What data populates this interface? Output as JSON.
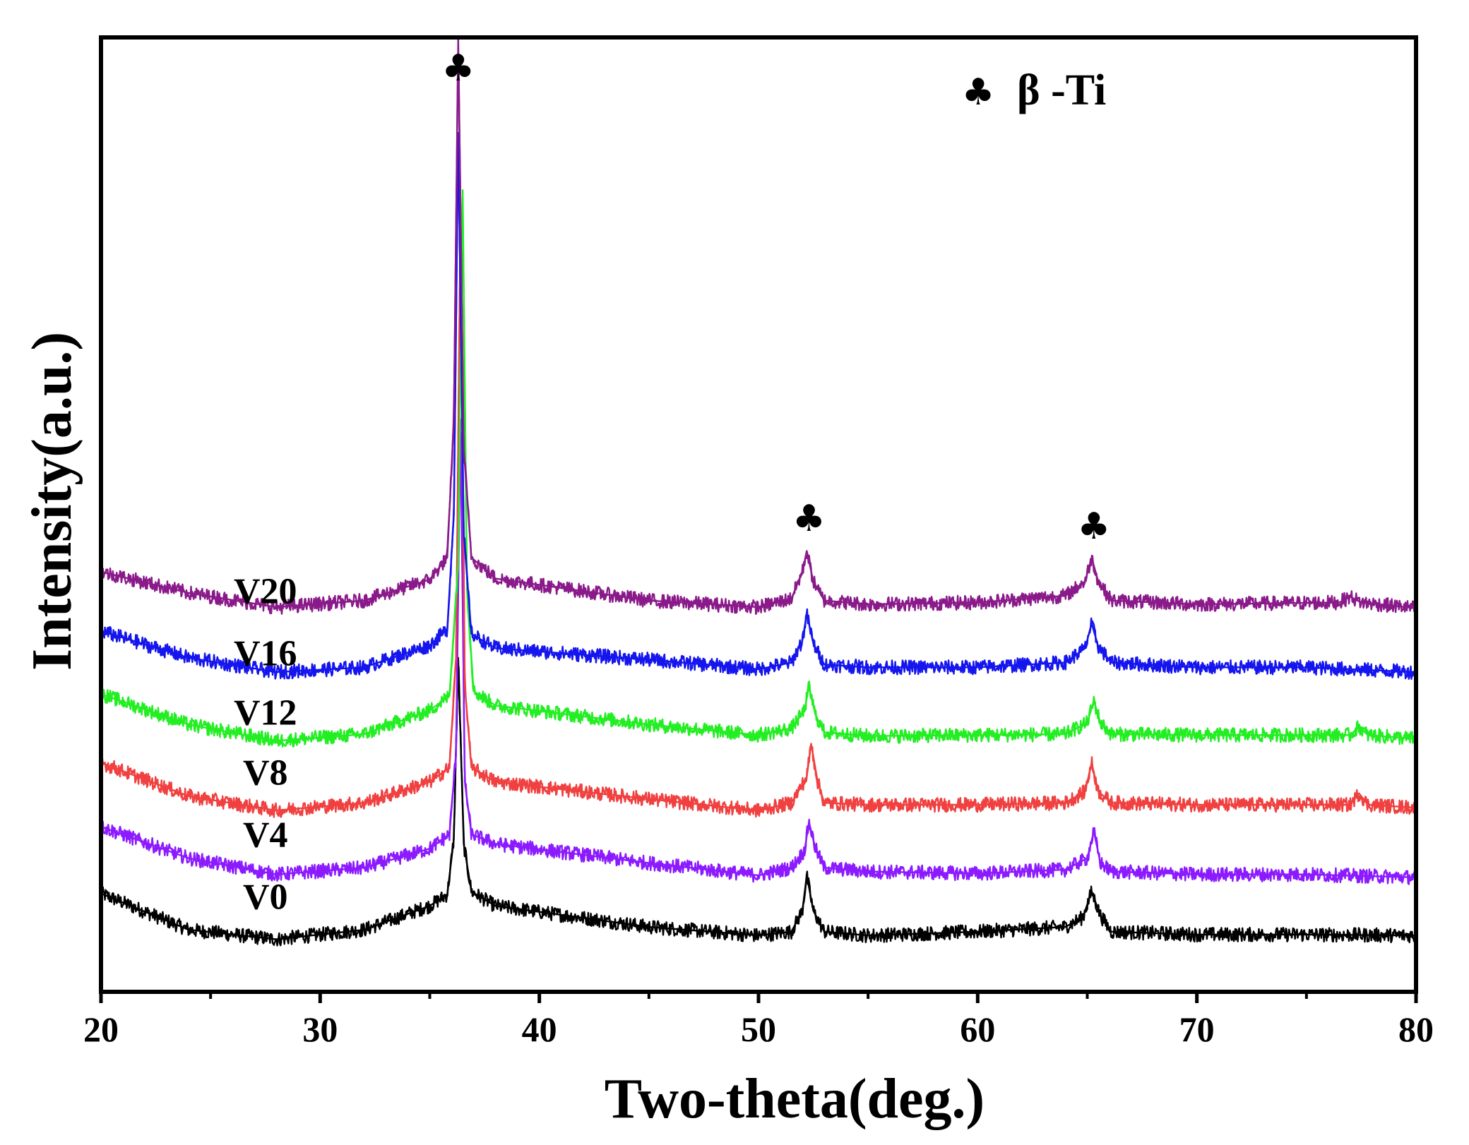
{
  "chart_data": {
    "type": "line",
    "title": "",
    "xlabel": "Two-theta(deg.)",
    "ylabel": "Intensity(a.u.)",
    "xlim": [
      20,
      80
    ],
    "ylim": [
      0,
      100
    ],
    "y_ticks_shown": false,
    "x_ticks": [
      20,
      30,
      40,
      50,
      60,
      70,
      80
    ],
    "x_tick_labels": [
      "20",
      "30",
      "40",
      "50",
      "60",
      "70",
      "80"
    ],
    "legend": {
      "symbol": "♣",
      "text": "β -Ti",
      "placement": "top-right"
    },
    "peak_markers": [
      {
        "x": 36.3,
        "y": 95.5,
        "symbol": "♣"
      },
      {
        "x": 52.3,
        "y": 48.3,
        "symbol": "♣"
      },
      {
        "x": 65.3,
        "y": 47.5,
        "symbol": "♣"
      }
    ],
    "series": [
      {
        "name": "V0",
        "label": "V0",
        "label_pos": [
          27.5,
          8.7
        ],
        "color": "#000000",
        "points": [
          [
            20,
            10.3
          ],
          [
            24,
            6.5
          ],
          [
            28,
            5.5
          ],
          [
            32,
            6.5
          ],
          [
            35,
            9.0
          ],
          [
            35.8,
            10.2
          ],
          [
            36.1,
            16.0
          ],
          [
            36.3,
            35.0
          ],
          [
            36.55,
            15.5
          ],
          [
            36.9,
            10.5
          ],
          [
            38,
            9.0
          ],
          [
            45,
            6.8
          ],
          [
            50,
            5.9
          ],
          [
            51.5,
            6.3
          ],
          [
            52.0,
            8.5
          ],
          [
            52.2,
            12.2
          ],
          [
            52.5,
            8.5
          ],
          [
            53,
            6.3
          ],
          [
            55,
            5.9
          ],
          [
            60,
            6.3
          ],
          [
            64,
            6.8
          ],
          [
            64.8,
            7.8
          ],
          [
            65.2,
            10.5
          ],
          [
            65.6,
            8.0
          ],
          [
            66.1,
            6.3
          ],
          [
            70,
            6.0
          ],
          [
            75,
            6.0
          ],
          [
            80,
            5.9
          ]
        ]
      },
      {
        "name": "V4",
        "label": "V4",
        "label_pos": [
          27.5,
          15.2
        ],
        "color": "#8c1aff",
        "points": [
          [
            20,
            17.3
          ],
          [
            24,
            14.0
          ],
          [
            28,
            12.3
          ],
          [
            32,
            13.0
          ],
          [
            35,
            15.0
          ],
          [
            35.9,
            16.5
          ],
          [
            36.2,
            25.0
          ],
          [
            36.4,
            60.0
          ],
          [
            36.6,
            22.0
          ],
          [
            36.9,
            16.5
          ],
          [
            38,
            15.5
          ],
          [
            45,
            13.5
          ],
          [
            50,
            12.2
          ],
          [
            51.5,
            13.0
          ],
          [
            52.1,
            14.8
          ],
          [
            52.3,
            17.8
          ],
          [
            52.6,
            15.0
          ],
          [
            53,
            13.0
          ],
          [
            55,
            12.6
          ],
          [
            60,
            12.4
          ],
          [
            64,
            12.8
          ],
          [
            65.0,
            14.0
          ],
          [
            65.3,
            16.8
          ],
          [
            65.6,
            13.5
          ],
          [
            66.1,
            12.6
          ],
          [
            70,
            12.3
          ],
          [
            75,
            12.3
          ],
          [
            80,
            12.0
          ]
        ]
      },
      {
        "name": "V8",
        "label": "V8",
        "label_pos": [
          27.5,
          21.7
        ],
        "color": "#f04040",
        "points": [
          [
            20,
            24.0
          ],
          [
            24,
            20.5
          ],
          [
            28,
            19.0
          ],
          [
            32,
            19.8
          ],
          [
            35,
            22.0
          ],
          [
            35.9,
            23.5
          ],
          [
            36.2,
            35.0
          ],
          [
            36.4,
            80.0
          ],
          [
            36.6,
            32.0
          ],
          [
            36.9,
            23.5
          ],
          [
            38,
            22.0
          ],
          [
            45,
            20.2
          ],
          [
            50,
            19.0
          ],
          [
            51.5,
            19.8
          ],
          [
            52.2,
            22.5
          ],
          [
            52.4,
            26.0
          ],
          [
            52.7,
            22.0
          ],
          [
            53,
            19.8
          ],
          [
            55,
            19.6
          ],
          [
            60,
            19.6
          ],
          [
            64,
            19.8
          ],
          [
            64.9,
            21.0
          ],
          [
            65.2,
            24.0
          ],
          [
            65.5,
            21.0
          ],
          [
            66.1,
            19.8
          ],
          [
            70,
            19.6
          ],
          [
            77.0,
            19.6
          ],
          [
            77.4,
            20.8
          ],
          [
            77.8,
            19.6
          ],
          [
            80,
            19.3
          ]
        ]
      },
      {
        "name": "V12",
        "label": "V12",
        "label_pos": [
          27.5,
          28.0
        ],
        "color": "#22ee22",
        "points": [
          [
            20,
            31.2
          ],
          [
            24,
            28.0
          ],
          [
            28,
            26.3
          ],
          [
            32,
            27.0
          ],
          [
            35,
            29.5
          ],
          [
            35.9,
            31.0
          ],
          [
            36.3,
            45.0
          ],
          [
            36.5,
            84.0
          ],
          [
            36.7,
            42.0
          ],
          [
            37.0,
            31.5
          ],
          [
            38,
            30.0
          ],
          [
            45,
            28.0
          ],
          [
            50,
            26.9
          ],
          [
            51.5,
            27.6
          ],
          [
            52.1,
            29.5
          ],
          [
            52.3,
            32.0
          ],
          [
            52.6,
            29.0
          ],
          [
            53,
            27.2
          ],
          [
            55,
            26.8
          ],
          [
            60,
            26.9
          ],
          [
            64,
            27.0
          ],
          [
            65.0,
            28.2
          ],
          [
            65.3,
            30.5
          ],
          [
            65.6,
            28.2
          ],
          [
            66.1,
            27.0
          ],
          [
            70,
            26.9
          ],
          [
            77.0,
            26.9
          ],
          [
            77.4,
            27.8
          ],
          [
            77.8,
            26.9
          ],
          [
            80,
            26.5
          ]
        ]
      },
      {
        "name": "V16",
        "label": "V16",
        "label_pos": [
          27.5,
          34.2
        ],
        "color": "#1515ee",
        "points": [
          [
            20,
            37.8
          ],
          [
            24,
            35.0
          ],
          [
            28,
            33.5
          ],
          [
            32,
            34.0
          ],
          [
            35,
            36.3
          ],
          [
            35.8,
            38.0
          ],
          [
            36.1,
            50.0
          ],
          [
            36.3,
            90.0
          ],
          [
            36.55,
            48.0
          ],
          [
            36.9,
            37.5
          ],
          [
            38,
            36.0
          ],
          [
            45,
            34.8
          ],
          [
            50,
            33.8
          ],
          [
            51.5,
            34.5
          ],
          [
            52.0,
            36.8
          ],
          [
            52.2,
            39.6
          ],
          [
            52.5,
            36.5
          ],
          [
            53,
            34.3
          ],
          [
            55,
            34.0
          ],
          [
            60,
            34.0
          ],
          [
            64,
            34.5
          ],
          [
            64.9,
            36.0
          ],
          [
            65.2,
            38.6
          ],
          [
            65.5,
            36.2
          ],
          [
            66.1,
            34.5
          ],
          [
            70,
            34.0
          ],
          [
            75,
            34.0
          ],
          [
            80,
            33.5
          ]
        ]
      },
      {
        "name": "V20",
        "label": "V20",
        "label_pos": [
          27.5,
          40.7
        ],
        "color": "#8a1a8a",
        "points": [
          [
            20,
            44.0
          ],
          [
            24,
            41.8
          ],
          [
            28,
            40.3
          ],
          [
            32,
            41.0
          ],
          [
            35,
            43.2
          ],
          [
            35.8,
            45.5
          ],
          [
            36.1,
            60.0
          ],
          [
            36.3,
            100.0
          ],
          [
            36.55,
            57.0
          ],
          [
            36.9,
            45.5
          ],
          [
            38,
            43.3
          ],
          [
            45,
            41.0
          ],
          [
            50,
            40.3
          ],
          [
            51.5,
            41.2
          ],
          [
            52.0,
            44.0
          ],
          [
            52.2,
            46.2
          ],
          [
            52.5,
            43.0
          ],
          [
            53,
            41.0
          ],
          [
            55,
            40.6
          ],
          [
            60,
            40.8
          ],
          [
            64,
            41.5
          ],
          [
            64.9,
            43.0
          ],
          [
            65.2,
            45.5
          ],
          [
            65.5,
            43.0
          ],
          [
            66.1,
            41.0
          ],
          [
            70,
            40.6
          ],
          [
            76.5,
            40.8
          ],
          [
            77.0,
            41.4
          ],
          [
            77.5,
            40.8
          ],
          [
            80,
            40.2
          ]
        ]
      }
    ]
  }
}
